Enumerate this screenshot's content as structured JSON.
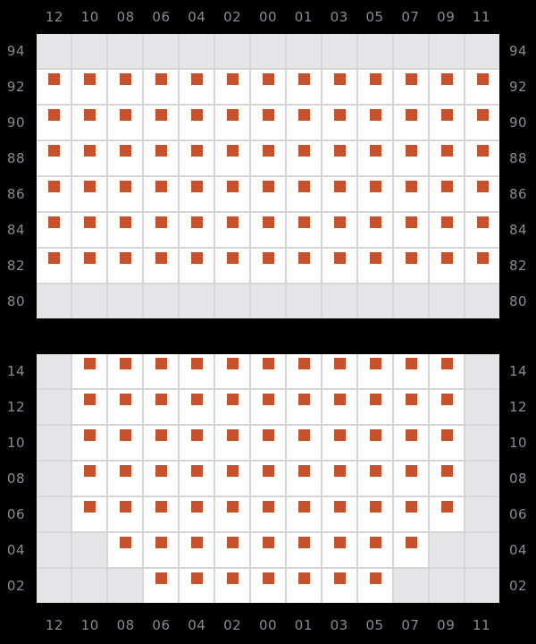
{
  "page": {
    "background": "#000000",
    "label_color": "#8a8a92"
  },
  "colors": {
    "marked_cell_bg": "#ffffff",
    "empty_cell_bg": "#e5e4e7",
    "grid_line": "#d6d5d9",
    "mark": "#c5522d"
  },
  "chart_data": {
    "type": "heatmap",
    "title": "",
    "legend": null,
    "columns": [
      "12",
      "10",
      "08",
      "06",
      "04",
      "02",
      "00",
      "01",
      "03",
      "05",
      "07",
      "09",
      "11"
    ],
    "column_labels_shown": [
      "top",
      "bottom"
    ],
    "row_labels_shown": [
      "left",
      "right"
    ],
    "cell_states": {
      "0": "no-data (gray)",
      "1": "marked (white cell with orange square)"
    },
    "panels": [
      {
        "name": "upper",
        "row_labels": [
          "94",
          "92",
          "90",
          "88",
          "86",
          "84",
          "82",
          "80"
        ],
        "cells": [
          [
            0,
            0,
            0,
            0,
            0,
            0,
            0,
            0,
            0,
            0,
            0,
            0,
            0
          ],
          [
            1,
            1,
            1,
            1,
            1,
            1,
            1,
            1,
            1,
            1,
            1,
            1,
            1
          ],
          [
            1,
            1,
            1,
            1,
            1,
            1,
            1,
            1,
            1,
            1,
            1,
            1,
            1
          ],
          [
            1,
            1,
            1,
            1,
            1,
            1,
            1,
            1,
            1,
            1,
            1,
            1,
            1
          ],
          [
            1,
            1,
            1,
            1,
            1,
            1,
            1,
            1,
            1,
            1,
            1,
            1,
            1
          ],
          [
            1,
            1,
            1,
            1,
            1,
            1,
            1,
            1,
            1,
            1,
            1,
            1,
            1
          ],
          [
            1,
            1,
            1,
            1,
            1,
            1,
            1,
            1,
            1,
            1,
            1,
            1,
            1
          ],
          [
            0,
            0,
            0,
            0,
            0,
            0,
            0,
            0,
            0,
            0,
            0,
            0,
            0
          ]
        ]
      },
      {
        "name": "lower",
        "row_labels": [
          "14",
          "12",
          "10",
          "08",
          "06",
          "04",
          "02"
        ],
        "cells": [
          [
            0,
            1,
            1,
            1,
            1,
            1,
            1,
            1,
            1,
            1,
            1,
            1,
            0
          ],
          [
            0,
            1,
            1,
            1,
            1,
            1,
            1,
            1,
            1,
            1,
            1,
            1,
            0
          ],
          [
            0,
            1,
            1,
            1,
            1,
            1,
            1,
            1,
            1,
            1,
            1,
            1,
            0
          ],
          [
            0,
            1,
            1,
            1,
            1,
            1,
            1,
            1,
            1,
            1,
            1,
            1,
            0
          ],
          [
            0,
            1,
            1,
            1,
            1,
            1,
            1,
            1,
            1,
            1,
            1,
            1,
            0
          ],
          [
            0,
            0,
            1,
            1,
            1,
            1,
            1,
            1,
            1,
            1,
            1,
            0,
            0
          ],
          [
            0,
            0,
            0,
            1,
            1,
            1,
            1,
            1,
            1,
            1,
            0,
            0,
            0
          ]
        ]
      }
    ]
  }
}
